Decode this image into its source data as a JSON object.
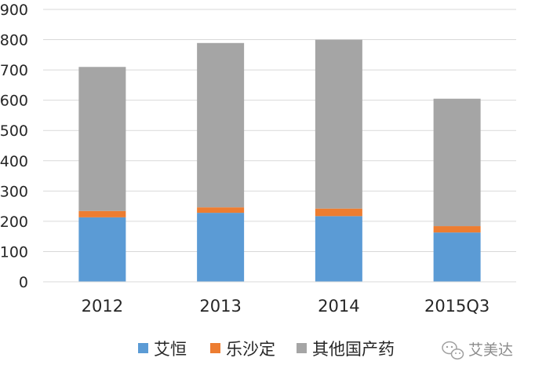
{
  "chart_data": {
    "type": "bar",
    "stacked": true,
    "categories": [
      "2012",
      "2013",
      "2014",
      "2015Q3"
    ],
    "series": [
      {
        "name": "艾恒",
        "color": "#5b9bd5",
        "values": [
          213,
          228,
          217,
          163
        ]
      },
      {
        "name": "乐沙定",
        "color": "#ed7d31",
        "values": [
          21,
          18,
          25,
          21
        ]
      },
      {
        "name": "其他国产药",
        "color": "#a5a5a5",
        "values": [
          476,
          543,
          558,
          421
        ]
      }
    ],
    "ylim": [
      0,
      900
    ],
    "yticks": [
      "0",
      "100",
      "200",
      "300",
      "400",
      "500",
      "600",
      "700",
      "800",
      "900"
    ],
    "grid": true,
    "legend_position": "bottom"
  },
  "watermark": {
    "text": "艾美达",
    "icon": "wechat-icon"
  }
}
